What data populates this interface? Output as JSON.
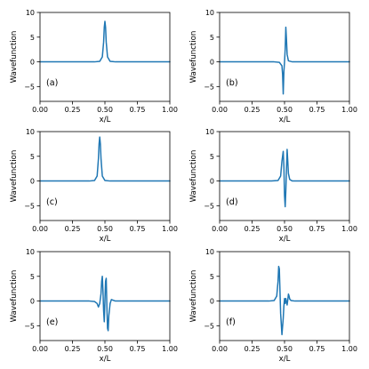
{
  "colors": {
    "series": "#1f77b4"
  },
  "chart_data": [
    {
      "type": "line",
      "label": "(a)",
      "xlabel": "x/L",
      "ylabel": "Wavefunction",
      "xlim": [
        0,
        1
      ],
      "ylim": [
        -8,
        10
      ],
      "xticks": [
        "0.00",
        "0.25",
        "0.50",
        "0.75",
        "1.00"
      ],
      "yticks": [
        "-5",
        "0",
        "5",
        "10"
      ],
      "x": [
        0.0,
        0.42,
        0.46,
        0.48,
        0.49,
        0.495,
        0.5,
        0.505,
        0.51,
        0.52,
        0.54,
        0.58,
        1.0
      ],
      "y": [
        0,
        0,
        0.1,
        1.0,
        4.0,
        7.0,
        8.2,
        7.0,
        4.0,
        1.0,
        0.1,
        0,
        0
      ]
    },
    {
      "type": "line",
      "label": "(b)",
      "xlabel": "x/L",
      "ylabel": "Wavefunction",
      "xlim": [
        0,
        1
      ],
      "ylim": [
        -8,
        10
      ],
      "xticks": [
        "0.00",
        "0.25",
        "0.50",
        "0.75",
        "1.00"
      ],
      "yticks": [
        "-5",
        "0",
        "5",
        "10"
      ],
      "x": [
        0.0,
        0.42,
        0.46,
        0.48,
        0.485,
        0.49,
        0.495,
        0.5,
        0.505,
        0.51,
        0.515,
        0.52,
        0.53,
        0.56,
        1.0
      ],
      "y": [
        0,
        0,
        -0.1,
        -0.8,
        -2.5,
        -6.5,
        -2.0,
        0,
        2.5,
        7.0,
        4.5,
        1.5,
        0.2,
        0,
        0
      ]
    },
    {
      "type": "line",
      "label": "(c)",
      "xlabel": "x/L",
      "ylabel": "Wavefunction",
      "xlim": [
        0,
        1
      ],
      "ylim": [
        -8,
        10
      ],
      "xticks": [
        "0.00",
        "0.25",
        "0.50",
        "0.75",
        "1.00"
      ],
      "yticks": [
        "-5",
        "0",
        "5",
        "10"
      ],
      "x": [
        0.0,
        0.38,
        0.42,
        0.44,
        0.45,
        0.455,
        0.46,
        0.465,
        0.47,
        0.48,
        0.5,
        0.54,
        1.0
      ],
      "y": [
        0,
        0,
        0.1,
        1.0,
        4.5,
        7.5,
        8.9,
        7.5,
        4.5,
        1.0,
        0.1,
        0,
        0
      ]
    },
    {
      "type": "line",
      "label": "(d)",
      "xlabel": "x/L",
      "ylabel": "Wavefunction",
      "xlim": [
        0,
        1
      ],
      "ylim": [
        -8,
        10
      ],
      "xticks": [
        "0.00",
        "0.25",
        "0.50",
        "0.75",
        "1.00"
      ],
      "yticks": [
        "-5",
        "0",
        "5",
        "10"
      ],
      "x": [
        0.0,
        0.4,
        0.45,
        0.47,
        0.48,
        0.49,
        0.495,
        0.5,
        0.505,
        0.51,
        0.515,
        0.52,
        0.525,
        0.53,
        0.54,
        0.56,
        1.0
      ],
      "y": [
        0,
        0,
        0.1,
        1.0,
        4.0,
        6.0,
        3.0,
        -3.0,
        -5.2,
        -2.0,
        2.5,
        6.4,
        4.0,
        1.5,
        0.3,
        0,
        0
      ]
    },
    {
      "type": "line",
      "label": "(e)",
      "xlabel": "x/L",
      "ylabel": "Wavefunction",
      "xlim": [
        0,
        1
      ],
      "ylim": [
        -8,
        10
      ],
      "xticks": [
        "0.00",
        "0.25",
        "0.50",
        "0.75",
        "1.00"
      ],
      "yticks": [
        "-5",
        "0",
        "5",
        "10"
      ],
      "x": [
        0.0,
        0.38,
        0.42,
        0.44,
        0.45,
        0.46,
        0.47,
        0.475,
        0.48,
        0.485,
        0.49,
        0.495,
        0.5,
        0.505,
        0.51,
        0.515,
        0.52,
        0.525,
        0.53,
        0.54,
        0.55,
        0.58,
        1.0
      ],
      "y": [
        0,
        0,
        -0.1,
        -0.5,
        -1.2,
        -0.5,
        1.5,
        4.0,
        5.0,
        2.0,
        -2.0,
        -4.2,
        0,
        4.0,
        4.6,
        -1.0,
        -5.5,
        -6.0,
        -3.0,
        -0.5,
        0.3,
        0,
        0
      ]
    },
    {
      "type": "line",
      "label": "(f)",
      "xlabel": "x/L",
      "ylabel": "Wavefunction",
      "xlim": [
        0,
        1
      ],
      "ylim": [
        -8,
        10
      ],
      "xticks": [
        "0.00",
        "0.25",
        "0.50",
        "0.75",
        "1.00"
      ],
      "yticks": [
        "-5",
        "0",
        "5",
        "10"
      ],
      "x": [
        0.0,
        0.38,
        0.42,
        0.44,
        0.45,
        0.455,
        0.46,
        0.465,
        0.47,
        0.48,
        0.49,
        0.495,
        0.5,
        0.505,
        0.51,
        0.52,
        0.525,
        0.53,
        0.535,
        0.54,
        0.55,
        0.58,
        1.0
      ],
      "y": [
        0,
        0,
        0.1,
        1.0,
        4.0,
        7.0,
        6.5,
        2.0,
        -2.5,
        -6.8,
        -3.5,
        -1.0,
        0.5,
        -0.5,
        0.5,
        -0.8,
        0.2,
        1.4,
        1.0,
        0.4,
        0.1,
        0,
        0
      ]
    }
  ]
}
